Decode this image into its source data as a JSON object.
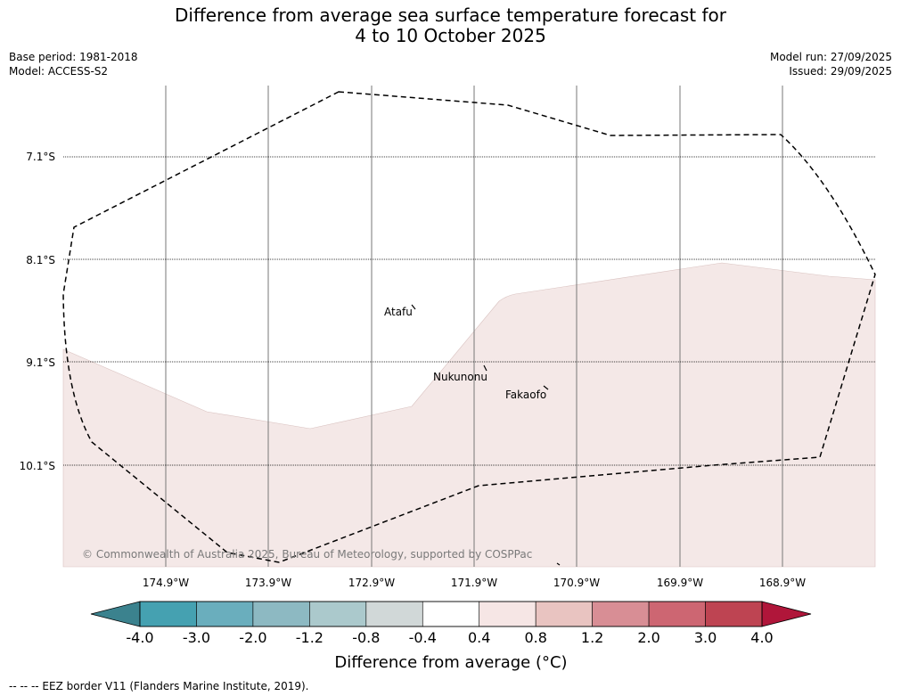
{
  "title_line1": "Difference from average sea surface temperature forecast for",
  "title_line2": "4 to 10 October 2025",
  "meta": {
    "base_period": "Base period: 1981-2018",
    "model": "Model: ACCESS-S2",
    "model_run": "Model run: 27/09/2025",
    "issued": "Issued: 29/09/2025"
  },
  "map": {
    "lat_labels": [
      "7.1°S",
      "8.1°S",
      "9.1°S",
      "10.1°S"
    ],
    "lon_labels": [
      "174.9°W",
      "173.9°W",
      "172.9°W",
      "171.9°W",
      "170.9°W",
      "169.9°W",
      "168.9°W"
    ],
    "places": [
      "Atafu",
      "Nukunonu",
      "Fakaofo"
    ],
    "copyright": "© Commonwealth of Australia 2025, Bureau of Meteorology, supported by COSPPac",
    "anomaly_fill_color": "#f4e8e7",
    "eez_color": "#000000"
  },
  "colorbar": {
    "label": "Difference from average (°C)",
    "ticks": [
      "-4.0",
      "-3.0",
      "-2.0",
      "-1.2",
      "-0.8",
      "-0.4",
      "0.4",
      "0.8",
      "1.2",
      "2.0",
      "3.0",
      "4.0"
    ],
    "under_color": "#3b828e",
    "over_color": "#b0163a",
    "colors": [
      "#45a1b1",
      "#6aaebd",
      "#8db9c2",
      "#abc9cc",
      "#d1d8d8",
      "#ffffff",
      "#f6e6e5",
      "#e9c4c1",
      "#d88e95",
      "#cd6672",
      "#be4452"
    ]
  },
  "footnote": "--  --  -- EEZ border V11 (Flanders Marine Institute, 2019)."
}
